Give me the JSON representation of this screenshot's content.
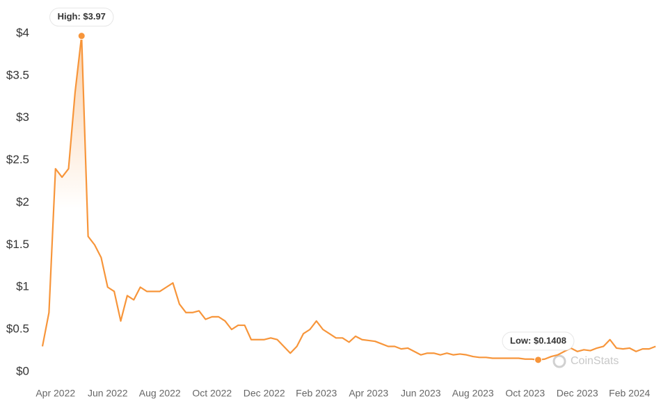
{
  "chart_data": {
    "type": "line",
    "color": "#f7953a",
    "grid": false,
    "watermark": "CoinStats",
    "ylim": [
      0,
      4
    ],
    "yticks": [
      {
        "value": 0,
        "label": "$0"
      },
      {
        "value": 0.5,
        "label": "$0.5"
      },
      {
        "value": 1,
        "label": "$1"
      },
      {
        "value": 1.5,
        "label": "$1.5"
      },
      {
        "value": 2,
        "label": "$2"
      },
      {
        "value": 2.5,
        "label": "$2.5"
      },
      {
        "value": 3,
        "label": "$3"
      },
      {
        "value": 3.5,
        "label": "$3.5"
      },
      {
        "value": 4,
        "label": "$4"
      }
    ],
    "categories": [
      null,
      null,
      "Apr 2022",
      null,
      null,
      null,
      null,
      null,
      null,
      null,
      "Jun 2022",
      null,
      null,
      null,
      null,
      null,
      null,
      null,
      "Aug 2022",
      null,
      null,
      null,
      null,
      null,
      null,
      null,
      "Oct 2022",
      null,
      null,
      null,
      null,
      null,
      null,
      null,
      "Dec 2022",
      null,
      null,
      null,
      null,
      null,
      null,
      null,
      "Feb 2023",
      null,
      null,
      null,
      null,
      null,
      null,
      null,
      "Apr 2023",
      null,
      null,
      null,
      null,
      null,
      null,
      null,
      "Jun 2023",
      null,
      null,
      null,
      null,
      null,
      null,
      null,
      "Aug 2023",
      null,
      null,
      null,
      null,
      null,
      null,
      null,
      "Oct 2023",
      null,
      null,
      null,
      null,
      null,
      null,
      null,
      "Dec 2023",
      null,
      null,
      null,
      null,
      null,
      null,
      null,
      "Feb 2024",
      null,
      null,
      null,
      null
    ],
    "values": [
      0.3,
      0.7,
      2.4,
      2.3,
      2.4,
      3.3,
      3.97,
      1.6,
      1.5,
      1.35,
      1.0,
      0.95,
      0.6,
      0.9,
      0.85,
      1.0,
      0.95,
      0.95,
      0.95,
      1.0,
      1.05,
      0.8,
      0.7,
      0.7,
      0.72,
      0.62,
      0.65,
      0.65,
      0.6,
      0.5,
      0.55,
      0.55,
      0.38,
      0.38,
      0.38,
      0.4,
      0.38,
      0.3,
      0.22,
      0.3,
      0.45,
      0.5,
      0.6,
      0.5,
      0.45,
      0.4,
      0.4,
      0.35,
      0.42,
      0.38,
      0.37,
      0.36,
      0.33,
      0.3,
      0.3,
      0.27,
      0.28,
      0.24,
      0.2,
      0.22,
      0.22,
      0.2,
      0.22,
      0.2,
      0.21,
      0.2,
      0.18,
      0.17,
      0.17,
      0.16,
      0.16,
      0.16,
      0.16,
      0.16,
      0.15,
      0.15,
      0.1408,
      0.15,
      0.18,
      0.2,
      0.24,
      0.28,
      0.24,
      0.26,
      0.25,
      0.28,
      0.3,
      0.38,
      0.28,
      0.27,
      0.28,
      0.24,
      0.27,
      0.27,
      0.3
    ],
    "annotations": [
      {
        "text": "High: $3.97",
        "value": 3.97
      },
      {
        "text": "Low: $0.1408",
        "value": 0.1408
      }
    ]
  }
}
